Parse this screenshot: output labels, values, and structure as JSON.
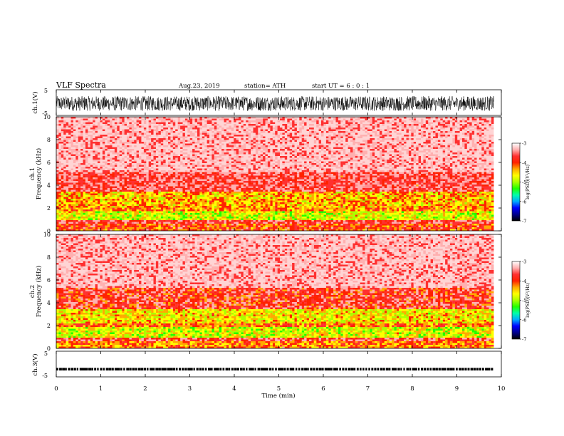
{
  "header": {
    "title": "VLF  Spectra",
    "date": "Aug.23, 2019",
    "station": "station= ATH",
    "start_ut": "start  UT  =    6  : 0   : 1"
  },
  "chart_data": [
    {
      "type": "line",
      "panel": "ch1-waveform",
      "ylabel": "ch.1(V)",
      "yticks": [
        "5",
        "-5"
      ],
      "ylim": [
        -5,
        5
      ],
      "xlim": [
        0,
        10
      ],
      "description_values": {
        "amplitude_range": [
          -3.2,
          2.5
        ]
      }
    },
    {
      "type": "heatmap",
      "panel": "ch1-spectrogram",
      "ylabel": "ch.1",
      "ylabel2": "Frequency  (kHz)",
      "yticks": [
        "10",
        "8",
        "6",
        "4",
        "2",
        "0"
      ],
      "ylim": [
        0,
        10
      ],
      "xlim": [
        0,
        9.83
      ],
      "bands": [
        {
          "f": [
            0.0,
            0.6
          ],
          "level": -4.0
        },
        {
          "f": [
            0.6,
            0.9
          ],
          "level": -3.6
        },
        {
          "f": [
            0.9,
            1.7
          ],
          "level": -4.8
        },
        {
          "f": [
            1.7,
            2.0
          ],
          "level": -4.2
        },
        {
          "f": [
            2.0,
            3.4
          ],
          "level": -4.4
        },
        {
          "f": [
            3.4,
            5.1
          ],
          "level": -3.6
        },
        {
          "f": [
            5.1,
            10.0
          ],
          "level": -3.2
        }
      ],
      "colorbar": {
        "label": "log(PSD)(V²/Hz)",
        "ticks": [
          "-3",
          "-4",
          "-5",
          "-6",
          "-7"
        ],
        "range": [
          -7,
          -3
        ]
      }
    },
    {
      "type": "heatmap",
      "panel": "ch2-spectrogram",
      "ylabel": "ch.2",
      "ylabel2": "Frequency  (kHz)",
      "yticks": [
        "10",
        "8",
        "6",
        "4",
        "2",
        "0"
      ],
      "ylim": [
        0,
        10
      ],
      "xlim": [
        0,
        9.83
      ],
      "bands": [
        {
          "f": [
            0.0,
            0.6
          ],
          "level": -4.2
        },
        {
          "f": [
            0.6,
            1.0
          ],
          "level": -3.7
        },
        {
          "f": [
            1.0,
            1.8
          ],
          "level": -4.8
        },
        {
          "f": [
            1.8,
            2.2
          ],
          "level": -4.1
        },
        {
          "f": [
            2.2,
            3.5
          ],
          "level": -4.6
        },
        {
          "f": [
            3.5,
            5.3
          ],
          "level": -3.8
        },
        {
          "f": [
            5.3,
            10.0
          ],
          "level": -3.2
        }
      ],
      "colorbar": {
        "label": "log(PSD)(V²/Hz)",
        "ticks": [
          "-3",
          "-4",
          "-5",
          "-6",
          "-7"
        ],
        "range": [
          -7,
          -3
        ]
      }
    },
    {
      "type": "line",
      "panel": "ch3-waveform",
      "ylabel": "ch.3(V)",
      "yticks": [
        "5",
        "-5"
      ],
      "ylim": [
        -5,
        5
      ],
      "xlim": [
        0,
        10
      ],
      "description_values": {
        "baseline": -2.0
      }
    }
  ],
  "x_axis": {
    "label": "Time  (min)",
    "ticks": [
      "0",
      "1",
      "2",
      "3",
      "4",
      "5",
      "6",
      "7",
      "8",
      "9",
      "10"
    ]
  },
  "colors": {
    "colormap": [
      "#000000",
      "#00008b",
      "#0000ff",
      "#00aaff",
      "#00ffaa",
      "#22ff00",
      "#aaff00",
      "#ffff00",
      "#ffaa00",
      "#ff2200",
      "#ff3030",
      "#ffb0b0",
      "#ffffff"
    ]
  }
}
